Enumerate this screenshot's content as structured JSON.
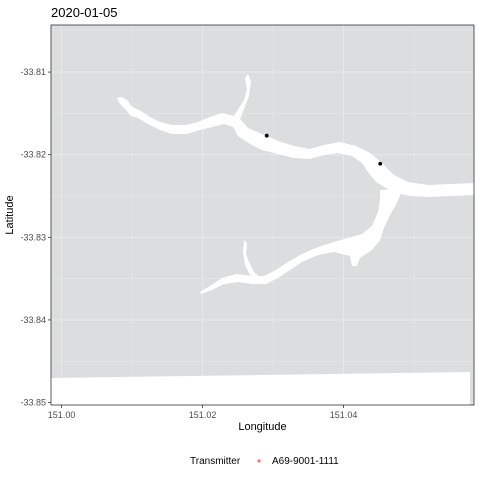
{
  "chart_data": {
    "type": "scatter",
    "title": "2020-01-05",
    "xlabel": "Longitude",
    "ylabel": "Latitude",
    "xlim": [
      150.9985,
      151.0585
    ],
    "ylim": [
      -33.8503,
      -33.8043
    ],
    "x_ticks": [
      "151.00",
      "151.02",
      "151.04"
    ],
    "x_tick_values": [
      151.0,
      151.02,
      151.04
    ],
    "y_ticks": [
      "-33.81",
      "-33.82",
      "-33.83",
      "-33.84",
      "-33.85"
    ],
    "y_tick_values": [
      -33.81,
      -33.82,
      -33.83,
      -33.84,
      -33.85
    ],
    "grid": true,
    "legend_position": "bottom",
    "legend_title": "Transmitter",
    "series": [
      {
        "name": "A69-9001-1111",
        "color": "#F8766D",
        "x": [
          151.0291,
          151.0452
        ],
        "y": [
          -33.8177,
          -33.8211
        ]
      }
    ],
    "colors": {
      "land": "#DCDDDF",
      "water": "#FFFFFF",
      "grid": "#EBEBEB",
      "points": "#000000"
    }
  }
}
